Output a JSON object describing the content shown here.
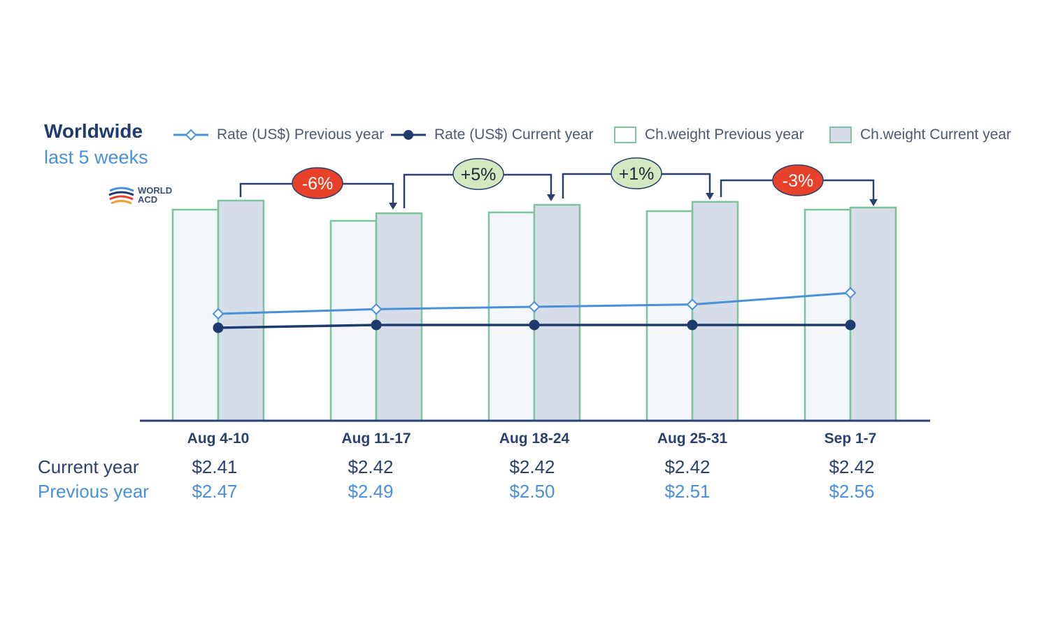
{
  "header": {
    "title": "Worldwide",
    "subtitle": "last 5 weeks"
  },
  "legend": [
    {
      "label": "Rate (US$) Previous year",
      "icon": "line-diamond-icon",
      "color": "#4a90d9"
    },
    {
      "label": "Rate (US$) Current year",
      "icon": "line-dot-icon",
      "color": "#1f3b6e"
    },
    {
      "label": "Ch.weight Previous year",
      "icon": "box-outline-icon",
      "color": "#7cc39e"
    },
    {
      "label": "Ch.weight Current year",
      "icon": "box-filled-icon",
      "color": "#d6dde8"
    }
  ],
  "logo": {
    "line1": "WORLD",
    "line2": "ACD"
  },
  "table": {
    "row_labels": {
      "current": "Current year",
      "previous": "Previous year"
    },
    "current": [
      "$2.41",
      "$2.42",
      "$2.42",
      "$2.42",
      "$2.42"
    ],
    "previous": [
      "$2.47",
      "$2.49",
      "$2.50",
      "$2.51",
      "$2.56"
    ]
  },
  "chart_data": {
    "type": "bar",
    "categories": [
      "Aug 4-10",
      "Aug 11-17",
      "Aug 18-24",
      "Aug 25-31",
      "Sep 1-7"
    ],
    "series": [
      {
        "name": "Ch.weight Previous year",
        "type": "bar",
        "values": [
          100,
          94.7,
          98.7,
          99.3,
          100
        ]
      },
      {
        "name": "Ch.weight Current year",
        "type": "bar",
        "values": [
          104.3,
          98.3,
          102.3,
          103.7,
          101
        ]
      },
      {
        "name": "Rate (US$) Previous year",
        "type": "line",
        "values": [
          2.47,
          2.49,
          2.5,
          2.51,
          2.56
        ]
      },
      {
        "name": "Rate (US$) Current year",
        "type": "line",
        "values": [
          2.41,
          2.42,
          2.42,
          2.42,
          2.42
        ]
      }
    ],
    "annotations": [
      {
        "label": "-6%",
        "style": "negative"
      },
      {
        "label": "+5%",
        "style": "positive"
      },
      {
        "label": "+1%",
        "style": "positive"
      },
      {
        "label": "-3%",
        "style": "negative"
      }
    ],
    "colors": {
      "bar_prev_fill": "#f3f6fb",
      "bar_border": "#7cc39e",
      "bar_cur_fill": "#d6dde8",
      "line_prev": "#4a90d9",
      "line_cur": "#1f3b6e",
      "axis": "#2a4170",
      "neg_badge": "#e8412a",
      "pos_badge": "#d4e8c0",
      "connector": "#2a4170"
    }
  }
}
